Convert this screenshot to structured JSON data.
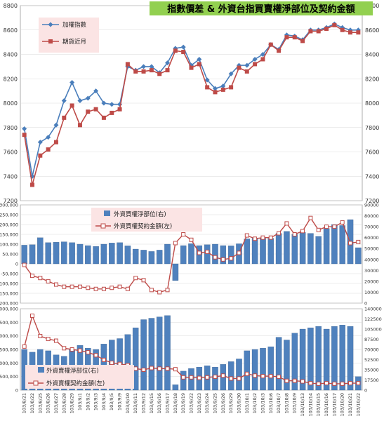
{
  "dates": [
    "103/8/21",
    "103/8/22",
    "103/8/25",
    "103/8/26",
    "103/8/27",
    "103/8/28",
    "103/8/29",
    "103/9/1",
    "103/9/2",
    "103/9/3",
    "103/9/4",
    "103/9/5",
    "103/9/9",
    "103/9/10",
    "103/9/11",
    "103/9/12",
    "103/9/15",
    "103/9/16",
    "103/9/17",
    "103/9/18",
    "103/9/19",
    "103/9/22",
    "103/9/23",
    "103/9/24",
    "103/9/25",
    "103/9/26",
    "103/9/29",
    "103/9/30",
    "103/10/1",
    "103/10/2",
    "103/10/3",
    "103/10/6",
    "103/10/7",
    "103/10/8",
    "103/10/9",
    "103/10/13",
    "103/10/14",
    "103/10/15",
    "103/10/16",
    "103/10/17",
    "103/10/20",
    "103/10/21",
    "103/10/22"
  ],
  "colors": {
    "index": "#4a7ebb",
    "futures": "#be4b48",
    "bar": "#4f81bd",
    "bar_edge": "#385d8a",
    "grid": "#d9d9d9",
    "legend_bg": "#fbe4e4",
    "title_bg": "#92d050"
  },
  "chart_data": [
    {
      "type": "line",
      "title": "指數價差 & 外資台指買賣權淨部位及契約金額",
      "ylim": [
        7200,
        8800
      ],
      "yticks": [
        7200,
        7400,
        7600,
        7800,
        8000,
        8200,
        8400,
        8600,
        8800
      ],
      "series": [
        {
          "name": "加權指數",
          "marker": "diamond",
          "values": [
            7790,
            7400,
            7680,
            7720,
            7820,
            8020,
            8170,
            8020,
            8040,
            8100,
            8000,
            7990,
            7990,
            8300,
            8270,
            8300,
            8300,
            8250,
            8330,
            8450,
            8460,
            8310,
            8360,
            8190,
            8120,
            8140,
            8240,
            8310,
            8310,
            8360,
            8400,
            8480,
            8440,
            8560,
            8550,
            8520,
            8600,
            8600,
            8620,
            8650,
            8620,
            8600,
            8600
          ]
        },
        {
          "name": "期貨近月",
          "marker": "square",
          "values": [
            7740,
            7330,
            7570,
            7620,
            7680,
            7880,
            7980,
            7820,
            7930,
            7950,
            7880,
            7920,
            7950,
            8320,
            8260,
            8260,
            8270,
            8240,
            8270,
            8430,
            8420,
            8290,
            8320,
            8130,
            8090,
            8110,
            8130,
            8290,
            8260,
            8320,
            8360,
            8480,
            8430,
            8540,
            8540,
            8510,
            8590,
            8590,
            8610,
            8640,
            8600,
            8580,
            8580
          ]
        }
      ]
    },
    {
      "type": "bar+line",
      "ylim_left": [
        -200000,
        300000
      ],
      "yticks_left": [
        -200000,
        -150000,
        -100000,
        -50000,
        0,
        50000,
        100000,
        150000,
        200000,
        250000,
        300000
      ],
      "ylim_right": [
        0,
        90000
      ],
      "yticks_right": [
        0,
        10000,
        20000,
        30000,
        40000,
        50000,
        60000,
        70000,
        80000,
        90000
      ],
      "bar_series": {
        "name": "外資買權淨部位(右)",
        "values": [
          95000,
          97000,
          133000,
          108000,
          110000,
          112000,
          108000,
          100000,
          93000,
          89000,
          100000,
          106000,
          108000,
          92000,
          75000,
          70000,
          63000,
          70000,
          100000,
          -85000,
          93000,
          103000,
          93000,
          97000,
          100000,
          93000,
          92000,
          102000,
          127000,
          130000,
          130000,
          130000,
          155000,
          165000,
          150000,
          160000,
          155000,
          140000,
          180000,
          200000,
          195000,
          225000,
          82000
        ]
      },
      "line_series": {
        "name": "外資買權契約金額(左)",
        "values": [
          35000,
          25000,
          23000,
          20000,
          17000,
          15000,
          15000,
          15000,
          14000,
          13000,
          13000,
          14000,
          15000,
          13000,
          23000,
          21000,
          12000,
          10000,
          12000,
          55000,
          63000,
          58000,
          46000,
          47000,
          42000,
          40000,
          41000,
          46000,
          62000,
          59000,
          60000,
          60000,
          64000,
          73000,
          63000,
          66000,
          78000,
          67000,
          70000,
          70000,
          74000,
          55000,
          56000
        ]
      }
    },
    {
      "type": "bar+line",
      "ylim_left": [
        0,
        3000000
      ],
      "yticks_left": [
        0,
        500000,
        1000000,
        1500000,
        2000000,
        2500000,
        3000000
      ],
      "ylim_right": [
        0,
        140000
      ],
      "yticks_right": [
        0,
        17500,
        35000,
        52500,
        70000,
        87500,
        105000,
        122500,
        140000
      ],
      "bar_series": {
        "name": "外資賣權淨部位(右)",
        "values": [
          1500000,
          1400000,
          1500000,
          1450000,
          1300000,
          1250000,
          1500000,
          1650000,
          1550000,
          1500000,
          1700000,
          1850000,
          1900000,
          2050000,
          2300000,
          2600000,
          2650000,
          2700000,
          2750000,
          200000,
          700000,
          800000,
          850000,
          900000,
          850000,
          950000,
          1050000,
          1150000,
          1450000,
          1500000,
          1550000,
          1600000,
          1950000,
          1850000,
          2100000,
          2250000,
          2300000,
          2350000,
          2250000,
          2350000,
          2400000,
          2350000,
          500000
        ]
      },
      "line_series": {
        "name": "外資賣權契約金額(左)",
        "values": [
          75000,
          128000,
          93000,
          88000,
          85000,
          72000,
          70000,
          68000,
          65000,
          60000,
          52000,
          47000,
          45000,
          43000,
          37000,
          35000,
          38000,
          37000,
          37000,
          36000,
          22000,
          22000,
          21000,
          22000,
          23000,
          25000,
          20000,
          20000,
          28000,
          25000,
          24000,
          24000,
          23000,
          16000,
          16000,
          15000,
          12000,
          11000,
          12000,
          11000,
          11000,
          12000,
          12000
        ]
      }
    }
  ]
}
